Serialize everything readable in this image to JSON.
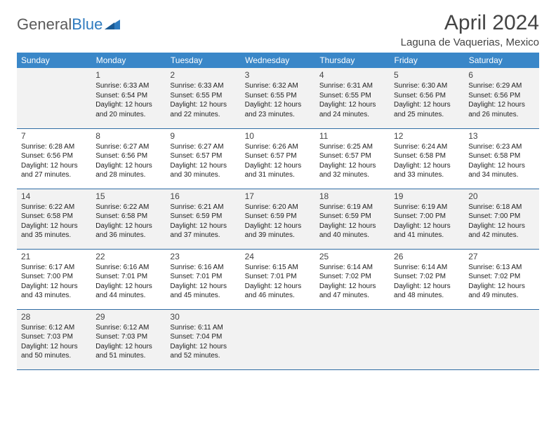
{
  "brand": {
    "name_gray": "General",
    "name_blue": "Blue"
  },
  "title": "April 2024",
  "location": "Laguna de Vaquerias, Mexico",
  "colors": {
    "header_bg": "#3a87c8",
    "header_text": "#ffffff",
    "row_border": "#2f6ca3",
    "row_alt_bg": "#f2f2f2",
    "text": "#222222",
    "title_text": "#444444",
    "logo_gray": "#5a5a5a",
    "logo_blue": "#2f7bbf"
  },
  "typography": {
    "month_title_fontsize": 30,
    "location_fontsize": 15,
    "day_header_fontsize": 12,
    "daynum_fontsize": 12,
    "body_fontsize": 10
  },
  "day_headers": [
    "Sunday",
    "Monday",
    "Tuesday",
    "Wednesday",
    "Thursday",
    "Friday",
    "Saturday"
  ],
  "weeks": [
    [
      {
        "num": "",
        "sunrise": "",
        "sunset": "",
        "daylight": ""
      },
      {
        "num": "1",
        "sunrise": "Sunrise: 6:33 AM",
        "sunset": "Sunset: 6:54 PM",
        "daylight": "Daylight: 12 hours and 20 minutes."
      },
      {
        "num": "2",
        "sunrise": "Sunrise: 6:33 AM",
        "sunset": "Sunset: 6:55 PM",
        "daylight": "Daylight: 12 hours and 22 minutes."
      },
      {
        "num": "3",
        "sunrise": "Sunrise: 6:32 AM",
        "sunset": "Sunset: 6:55 PM",
        "daylight": "Daylight: 12 hours and 23 minutes."
      },
      {
        "num": "4",
        "sunrise": "Sunrise: 6:31 AM",
        "sunset": "Sunset: 6:55 PM",
        "daylight": "Daylight: 12 hours and 24 minutes."
      },
      {
        "num": "5",
        "sunrise": "Sunrise: 6:30 AM",
        "sunset": "Sunset: 6:56 PM",
        "daylight": "Daylight: 12 hours and 25 minutes."
      },
      {
        "num": "6",
        "sunrise": "Sunrise: 6:29 AM",
        "sunset": "Sunset: 6:56 PM",
        "daylight": "Daylight: 12 hours and 26 minutes."
      }
    ],
    [
      {
        "num": "7",
        "sunrise": "Sunrise: 6:28 AM",
        "sunset": "Sunset: 6:56 PM",
        "daylight": "Daylight: 12 hours and 27 minutes."
      },
      {
        "num": "8",
        "sunrise": "Sunrise: 6:27 AM",
        "sunset": "Sunset: 6:56 PM",
        "daylight": "Daylight: 12 hours and 28 minutes."
      },
      {
        "num": "9",
        "sunrise": "Sunrise: 6:27 AM",
        "sunset": "Sunset: 6:57 PM",
        "daylight": "Daylight: 12 hours and 30 minutes."
      },
      {
        "num": "10",
        "sunrise": "Sunrise: 6:26 AM",
        "sunset": "Sunset: 6:57 PM",
        "daylight": "Daylight: 12 hours and 31 minutes."
      },
      {
        "num": "11",
        "sunrise": "Sunrise: 6:25 AM",
        "sunset": "Sunset: 6:57 PM",
        "daylight": "Daylight: 12 hours and 32 minutes."
      },
      {
        "num": "12",
        "sunrise": "Sunrise: 6:24 AM",
        "sunset": "Sunset: 6:58 PM",
        "daylight": "Daylight: 12 hours and 33 minutes."
      },
      {
        "num": "13",
        "sunrise": "Sunrise: 6:23 AM",
        "sunset": "Sunset: 6:58 PM",
        "daylight": "Daylight: 12 hours and 34 minutes."
      }
    ],
    [
      {
        "num": "14",
        "sunrise": "Sunrise: 6:22 AM",
        "sunset": "Sunset: 6:58 PM",
        "daylight": "Daylight: 12 hours and 35 minutes."
      },
      {
        "num": "15",
        "sunrise": "Sunrise: 6:22 AM",
        "sunset": "Sunset: 6:58 PM",
        "daylight": "Daylight: 12 hours and 36 minutes."
      },
      {
        "num": "16",
        "sunrise": "Sunrise: 6:21 AM",
        "sunset": "Sunset: 6:59 PM",
        "daylight": "Daylight: 12 hours and 37 minutes."
      },
      {
        "num": "17",
        "sunrise": "Sunrise: 6:20 AM",
        "sunset": "Sunset: 6:59 PM",
        "daylight": "Daylight: 12 hours and 39 minutes."
      },
      {
        "num": "18",
        "sunrise": "Sunrise: 6:19 AM",
        "sunset": "Sunset: 6:59 PM",
        "daylight": "Daylight: 12 hours and 40 minutes."
      },
      {
        "num": "19",
        "sunrise": "Sunrise: 6:19 AM",
        "sunset": "Sunset: 7:00 PM",
        "daylight": "Daylight: 12 hours and 41 minutes."
      },
      {
        "num": "20",
        "sunrise": "Sunrise: 6:18 AM",
        "sunset": "Sunset: 7:00 PM",
        "daylight": "Daylight: 12 hours and 42 minutes."
      }
    ],
    [
      {
        "num": "21",
        "sunrise": "Sunrise: 6:17 AM",
        "sunset": "Sunset: 7:00 PM",
        "daylight": "Daylight: 12 hours and 43 minutes."
      },
      {
        "num": "22",
        "sunrise": "Sunrise: 6:16 AM",
        "sunset": "Sunset: 7:01 PM",
        "daylight": "Daylight: 12 hours and 44 minutes."
      },
      {
        "num": "23",
        "sunrise": "Sunrise: 6:16 AM",
        "sunset": "Sunset: 7:01 PM",
        "daylight": "Daylight: 12 hours and 45 minutes."
      },
      {
        "num": "24",
        "sunrise": "Sunrise: 6:15 AM",
        "sunset": "Sunset: 7:01 PM",
        "daylight": "Daylight: 12 hours and 46 minutes."
      },
      {
        "num": "25",
        "sunrise": "Sunrise: 6:14 AM",
        "sunset": "Sunset: 7:02 PM",
        "daylight": "Daylight: 12 hours and 47 minutes."
      },
      {
        "num": "26",
        "sunrise": "Sunrise: 6:14 AM",
        "sunset": "Sunset: 7:02 PM",
        "daylight": "Daylight: 12 hours and 48 minutes."
      },
      {
        "num": "27",
        "sunrise": "Sunrise: 6:13 AM",
        "sunset": "Sunset: 7:02 PM",
        "daylight": "Daylight: 12 hours and 49 minutes."
      }
    ],
    [
      {
        "num": "28",
        "sunrise": "Sunrise: 6:12 AM",
        "sunset": "Sunset: 7:03 PM",
        "daylight": "Daylight: 12 hours and 50 minutes."
      },
      {
        "num": "29",
        "sunrise": "Sunrise: 6:12 AM",
        "sunset": "Sunset: 7:03 PM",
        "daylight": "Daylight: 12 hours and 51 minutes."
      },
      {
        "num": "30",
        "sunrise": "Sunrise: 6:11 AM",
        "sunset": "Sunset: 7:04 PM",
        "daylight": "Daylight: 12 hours and 52 minutes."
      },
      {
        "num": "",
        "sunrise": "",
        "sunset": "",
        "daylight": ""
      },
      {
        "num": "",
        "sunrise": "",
        "sunset": "",
        "daylight": ""
      },
      {
        "num": "",
        "sunrise": "",
        "sunset": "",
        "daylight": ""
      },
      {
        "num": "",
        "sunrise": "",
        "sunset": "",
        "daylight": ""
      }
    ]
  ]
}
